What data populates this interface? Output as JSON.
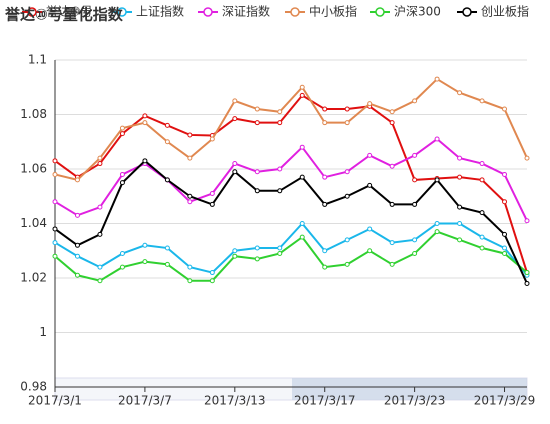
{
  "chart_data": {
    "type": "line",
    "title": "誉达⑩号量化指数",
    "categories": [
      "2017/3/1",
      null,
      null,
      null,
      "2017/3/7",
      null,
      null,
      null,
      "2017/3/13",
      null,
      null,
      null,
      "2017/3/17",
      null,
      null,
      null,
      "2017/3/23",
      null,
      null,
      null,
      "2017/3/29",
      null
    ],
    "ylim": [
      0.98,
      1.1
    ],
    "yticks": [
      0.98,
      1,
      1.02,
      1.04,
      1.06,
      1.08,
      1.1
    ],
    "grid": true,
    "series": [
      {
        "name": "誉达⑩号",
        "color": "#e01010",
        "values": [
          1.063,
          1.057,
          1.062,
          1.073,
          1.0795,
          1.076,
          1.0725,
          1.0723,
          1.0785,
          1.077,
          1.077,
          1.087,
          1.082,
          1.082,
          1.083,
          1.077,
          1.056,
          1.0565,
          1.057,
          1.056,
          1.048,
          1.022
        ]
      },
      {
        "name": "上证指数",
        "color": "#1ab7ea",
        "values": [
          1.033,
          1.028,
          1.024,
          1.029,
          1.032,
          1.031,
          1.024,
          1.022,
          1.03,
          1.031,
          1.031,
          1.04,
          1.03,
          1.034,
          1.038,
          1.033,
          1.034,
          1.04,
          1.04,
          1.035,
          1.031,
          1.021
        ]
      },
      {
        "name": "深证指数",
        "color": "#e020e0",
        "values": [
          1.048,
          1.043,
          1.046,
          1.058,
          1.062,
          1.056,
          1.048,
          1.051,
          1.062,
          1.059,
          1.06,
          1.068,
          1.057,
          1.059,
          1.065,
          1.061,
          1.065,
          1.071,
          1.064,
          1.062,
          1.058,
          1.041
        ]
      },
      {
        "name": "中小板指",
        "color": "#e08850",
        "values": [
          1.058,
          1.056,
          1.064,
          1.075,
          1.077,
          1.07,
          1.064,
          1.071,
          1.085,
          1.082,
          1.081,
          1.09,
          1.077,
          1.077,
          1.084,
          1.081,
          1.085,
          1.093,
          1.088,
          1.085,
          1.082,
          1.064
        ]
      },
      {
        "name": "沪深300",
        "color": "#30d030",
        "values": [
          1.028,
          1.021,
          1.019,
          1.024,
          1.026,
          1.025,
          1.019,
          1.019,
          1.028,
          1.027,
          1.029,
          1.035,
          1.024,
          1.025,
          1.03,
          1.025,
          1.029,
          1.037,
          1.034,
          1.031,
          1.029,
          1.022
        ]
      },
      {
        "name": "创业板指",
        "color": "#000000",
        "values": [
          1.038,
          1.032,
          1.036,
          1.055,
          1.063,
          1.056,
          1.05,
          1.047,
          1.059,
          1.052,
          1.052,
          1.057,
          1.047,
          1.05,
          1.054,
          1.047,
          1.047,
          1.056,
          1.046,
          1.044,
          1.036,
          1.018
        ]
      }
    ]
  }
}
